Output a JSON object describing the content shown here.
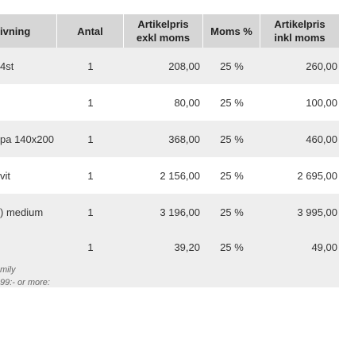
{
  "columns": {
    "description": "ivning",
    "quantity": "Antal",
    "price_ex_line1": "Artikelpris",
    "price_ex_line2": "exkl moms",
    "vat": "Moms %",
    "price_inc_line1": "Artikelpris",
    "price_inc_line2": "inkl moms"
  },
  "rows": [
    {
      "description": "4st",
      "quantity": "1",
      "price_ex": "208,00",
      "vat": "25 %",
      "price_inc": "260,00"
    },
    {
      "description": "",
      "quantity": "1",
      "price_ex": "80,00",
      "vat": "25 %",
      "price_inc": "100,00"
    },
    {
      "description": "pa 140x200",
      "quantity": "1",
      "price_ex": "368,00",
      "vat": "25 %",
      "price_inc": "460,00"
    },
    {
      "description": "vit",
      "quantity": "1",
      "price_ex": "2 156,00",
      "vat": "25 %",
      "price_inc": "2 695,00"
    },
    {
      "description": ") medium",
      "quantity": "1",
      "price_ex": "3 196,00",
      "vat": "25 %",
      "price_inc": "3 995,00"
    },
    {
      "description": "",
      "quantity": "1",
      "price_ex": "39,20",
      "vat": "25 %",
      "price_inc": "49,00",
      "note_line1": "mily",
      "note_line2": "99:- or more:"
    }
  ]
}
